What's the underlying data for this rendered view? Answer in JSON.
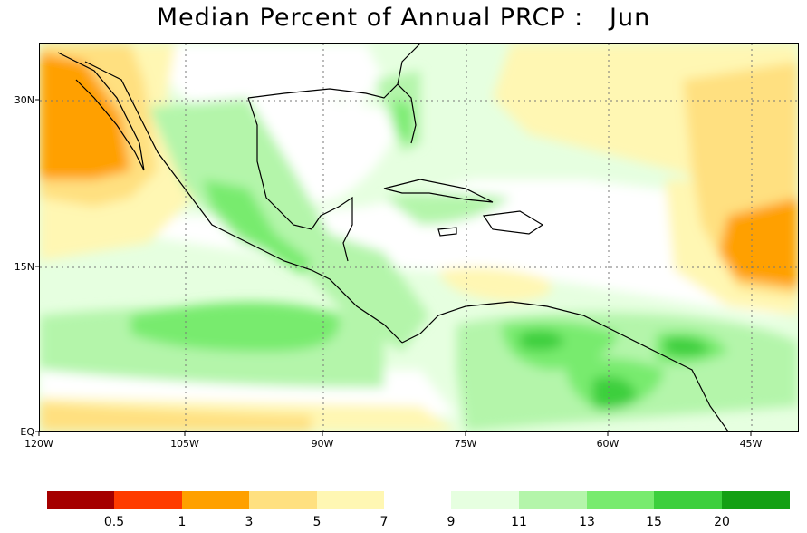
{
  "title": "Median Percent of Annual PRCP :   Jun",
  "map": {
    "lon_labels": [
      "120W",
      "105W",
      "90W",
      "75W",
      "60W",
      "45W"
    ],
    "lat_labels": [
      "30N",
      "15N",
      "EQ"
    ]
  },
  "legend": {
    "left_colors": [
      "#a50000",
      "#ff3b00",
      "#ffa000",
      "#ffe080",
      "#fff7b3"
    ],
    "left_labels": [
      "0.5",
      "1",
      "3",
      "5",
      "7"
    ],
    "right_colors": [
      "#e6ffe0",
      "#b4f5aa",
      "#78eb6e",
      "#3dcf3d",
      "#14a014"
    ],
    "right_labels": [
      "9",
      "11",
      "13",
      "15",
      "20"
    ]
  }
}
